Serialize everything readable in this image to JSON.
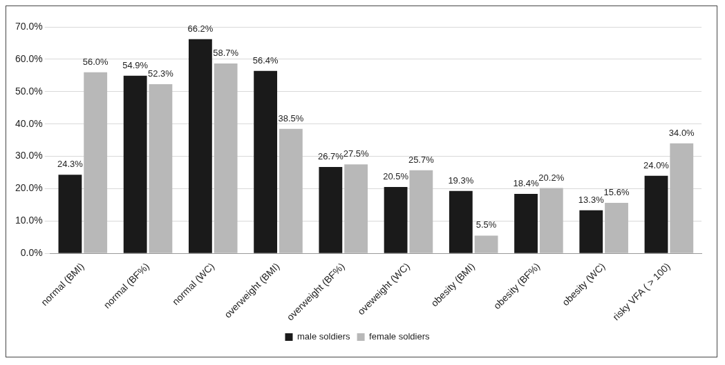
{
  "chart_data": {
    "type": "bar",
    "categories": [
      "normal (BMI)",
      "normal (BF%)",
      "normal (WC)",
      "overweight (BMI)",
      "overweight (BF%)",
      "oveweight (WC)",
      "obesity (BMI)",
      "obesity (BF%)",
      "obesity (WC)",
      "risky VFA ( > 100)"
    ],
    "series": [
      {
        "name": "male soldiers",
        "color": "#1a1a1a",
        "values": [
          24.3,
          54.9,
          66.2,
          56.4,
          26.7,
          20.5,
          19.3,
          18.4,
          13.3,
          24.0
        ],
        "value_labels": [
          "24.3%",
          "54.9%",
          "66.2%",
          "56.4%",
          "26.7%",
          "20.5%",
          "19.3%",
          "18.4%",
          "13.3%",
          "24.0%"
        ]
      },
      {
        "name": "female soldiers",
        "color": "#b8b8b8",
        "values": [
          56.0,
          52.3,
          58.7,
          38.5,
          27.5,
          25.7,
          5.5,
          20.2,
          15.6,
          34.0
        ],
        "value_labels": [
          "56.0%",
          "52.3%",
          "58.7%",
          "38.5%",
          "27.5%",
          "25.7%",
          "5.5%",
          "20.2%",
          "15.6%",
          "34.0%"
        ]
      }
    ],
    "ylim": [
      0,
      70
    ],
    "yticks": [
      {
        "value": 0,
        "label": "0.0%"
      },
      {
        "value": 10,
        "label": "10.0%"
      },
      {
        "value": 20,
        "label": "20.0%"
      },
      {
        "value": 30,
        "label": "30.0%"
      },
      {
        "value": 40,
        "label": "40.0%"
      },
      {
        "value": 50,
        "label": "50.0%"
      },
      {
        "value": 60,
        "label": "60.0%"
      },
      {
        "value": 70,
        "label": "70.0%"
      }
    ],
    "grid": "y",
    "legend": "bottom"
  }
}
